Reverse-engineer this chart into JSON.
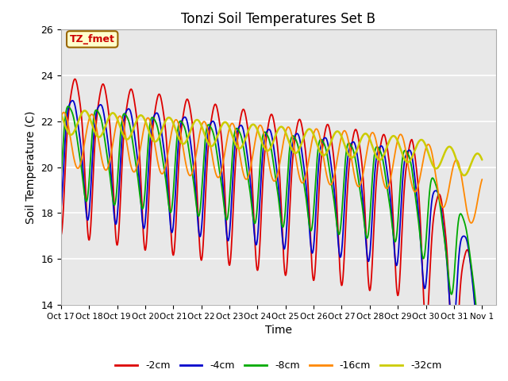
{
  "title": "Tonzi Soil Temperatures Set B",
  "xlabel": "Time",
  "ylabel": "Soil Temperature (C)",
  "ylim": [
    14,
    26
  ],
  "xlim": [
    0,
    15.5
  ],
  "plot_bg_color": "#e8e8e8",
  "annotation_text": "TZ_fmet",
  "annotation_bg": "#ffffcc",
  "annotation_border": "#996600",
  "annotation_text_color": "#cc0000",
  "xtick_labels": [
    "Oct 17",
    "Oct 18",
    "Oct 19",
    "Oct 20",
    "Oct 21",
    "Oct 22",
    "Oct 23",
    "Oct 24",
    "Oct 25",
    "Oct 26",
    "Oct 27",
    "Oct 28",
    "Oct 29",
    "Oct 30",
    "Oct 31",
    "Nov 1"
  ],
  "legend_labels": [
    "-2cm",
    "-4cm",
    "-8cm",
    "-16cm",
    "-32cm"
  ],
  "line_colors": [
    "#dd0000",
    "#0000cc",
    "#00aa00",
    "#ff8800",
    "#cccc00"
  ],
  "line_widths": [
    1.3,
    1.3,
    1.3,
    1.3,
    1.8
  ],
  "grid_color": "#ffffff",
  "yticks": [
    14,
    16,
    18,
    20,
    22,
    24,
    26
  ]
}
